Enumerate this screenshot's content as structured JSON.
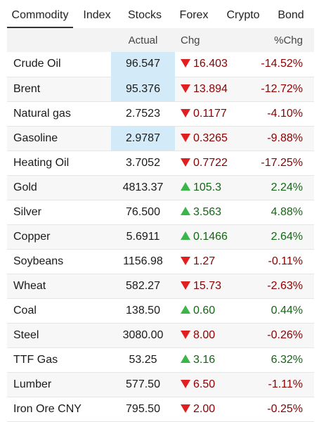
{
  "tabs": [
    {
      "label": "Commodity",
      "active": true
    },
    {
      "label": "Index",
      "active": false
    },
    {
      "label": "Stocks",
      "active": false
    },
    {
      "label": "Forex",
      "active": false
    },
    {
      "label": "Crypto",
      "active": false
    },
    {
      "label": "Bond",
      "active": false
    }
  ],
  "table": {
    "headers": {
      "name": "",
      "actual": "Actual",
      "chg": "Chg",
      "pct": "%Chg"
    },
    "colors": {
      "down_text": "#8b0000",
      "down_arrow": "#e02020",
      "up_text": "#146614",
      "up_arrow": "#3bb54a",
      "highlight": "#d3ebf8"
    },
    "rows": [
      {
        "name": "Crude Oil",
        "actual": "96.547",
        "chg": "16.403",
        "pct": "-14.52%",
        "direction": "down",
        "highlight": true
      },
      {
        "name": "Brent",
        "actual": "95.376",
        "chg": "13.894",
        "pct": "-12.72%",
        "direction": "down",
        "highlight": true
      },
      {
        "name": "Natural gas",
        "actual": "2.7523",
        "chg": "0.1177",
        "pct": "-4.10%",
        "direction": "down",
        "highlight": false
      },
      {
        "name": "Gasoline",
        "actual": "2.9787",
        "chg": "0.3265",
        "pct": "-9.88%",
        "direction": "down",
        "highlight": true
      },
      {
        "name": "Heating Oil",
        "actual": "3.7052",
        "chg": "0.7722",
        "pct": "-17.25%",
        "direction": "down",
        "highlight": false
      },
      {
        "name": "Gold",
        "actual": "4813.37",
        "chg": "105.3",
        "pct": "2.24%",
        "direction": "up",
        "highlight": false
      },
      {
        "name": "Silver",
        "actual": "76.500",
        "chg": "3.563",
        "pct": "4.88%",
        "direction": "up",
        "highlight": false
      },
      {
        "name": "Copper",
        "actual": "5.6911",
        "chg": "0.1466",
        "pct": "2.64%",
        "direction": "up",
        "highlight": false
      },
      {
        "name": "Soybeans",
        "actual": "1156.98",
        "chg": "1.27",
        "pct": "-0.11%",
        "direction": "down",
        "highlight": false
      },
      {
        "name": "Wheat",
        "actual": "582.27",
        "chg": "15.73",
        "pct": "-2.63%",
        "direction": "down",
        "highlight": false
      },
      {
        "name": "Coal",
        "actual": "138.50",
        "chg": "0.60",
        "pct": "0.44%",
        "direction": "up",
        "highlight": false
      },
      {
        "name": "Steel",
        "actual": "3080.00",
        "chg": "8.00",
        "pct": "-0.26%",
        "direction": "down",
        "highlight": false
      },
      {
        "name": "TTF Gas",
        "actual": "53.25",
        "chg": "3.16",
        "pct": "6.32%",
        "direction": "up",
        "highlight": false
      },
      {
        "name": "Lumber",
        "actual": "577.50",
        "chg": "6.50",
        "pct": "-1.11%",
        "direction": "down",
        "highlight": false
      },
      {
        "name": "Iron Ore CNY",
        "actual": "795.50",
        "chg": "2.00",
        "pct": "-0.25%",
        "direction": "down",
        "highlight": false
      }
    ]
  }
}
